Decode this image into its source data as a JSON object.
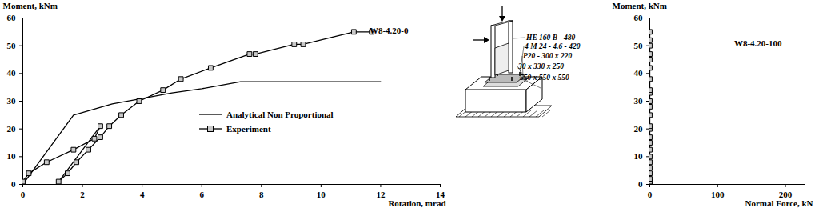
{
  "chart_data": [
    {
      "type": "line",
      "title": "W8-4.20-0",
      "x_label": "Rotation, mrad",
      "y_label": "Moment, kNm",
      "xlim": [
        0,
        14
      ],
      "xticks": [
        0,
        2,
        4,
        6,
        8,
        10,
        12,
        14
      ],
      "ylim": [
        0,
        60
      ],
      "yticks": [
        0,
        10,
        20,
        30,
        40,
        50,
        60
      ],
      "legend": "center",
      "series": [
        {
          "name": "Analytical Non Proportional",
          "color": "#000000",
          "marker": "none",
          "line_style": "solid",
          "x": [
            0,
            1.7,
            3,
            4,
            5,
            6,
            7.3,
            12
          ],
          "values": [
            0,
            25,
            29,
            31,
            33,
            34.5,
            37,
            37
          ]
        },
        {
          "name": "Experiment",
          "color": "#000000",
          "marker": "square",
          "line_style": "solid",
          "x": [
            0,
            0.2,
            0.8,
            1.7,
            2.4,
            2.6,
            1.2,
            1.5,
            1.8,
            2.2,
            2.6,
            2.9,
            3.3,
            3.9,
            4.7,
            5.3,
            6.3,
            7.6,
            7.8,
            9.1,
            9.4,
            11.1,
            11.7
          ],
          "values": [
            1,
            4,
            8,
            12.5,
            16.5,
            21,
            1,
            4,
            8,
            12.5,
            17,
            21,
            25,
            30,
            34,
            38,
            42,
            47,
            47,
            50.5,
            50.5,
            55,
            55
          ]
        }
      ]
    },
    {
      "type": "line",
      "title": "W8-4.20-100",
      "x_label": "Normal Force, kN",
      "y_label": "Moment, kNm",
      "xlim": [
        0,
        230
      ],
      "xticks": [
        0,
        100,
        200
      ],
      "ylim": [
        0,
        60
      ],
      "yticks": [
        0,
        10,
        20,
        30,
        40,
        50,
        60
      ],
      "series": [
        {
          "color": "#000000",
          "marker": "square",
          "line_style": "solid",
          "x": [
            0,
            0,
            0,
            0,
            0,
            0,
            0,
            0,
            0,
            0,
            0,
            0,
            0,
            0,
            0,
            0,
            0,
            0,
            0,
            0,
            0,
            0,
            0,
            0
          ],
          "values": [
            0,
            1,
            2,
            4,
            6,
            8,
            10,
            12.5,
            15,
            17,
            20,
            21,
            25,
            28,
            30,
            33,
            34,
            38,
            42,
            45,
            47,
            50,
            52,
            55
          ]
        }
      ]
    }
  ],
  "diagram": {
    "labels": [
      "HE 160 B - 480",
      "4 M 24 - 4.6 - 420",
      "P20 - 300 x 220",
      "30 x 330 x 250",
      "550 x 550 x 550"
    ]
  }
}
